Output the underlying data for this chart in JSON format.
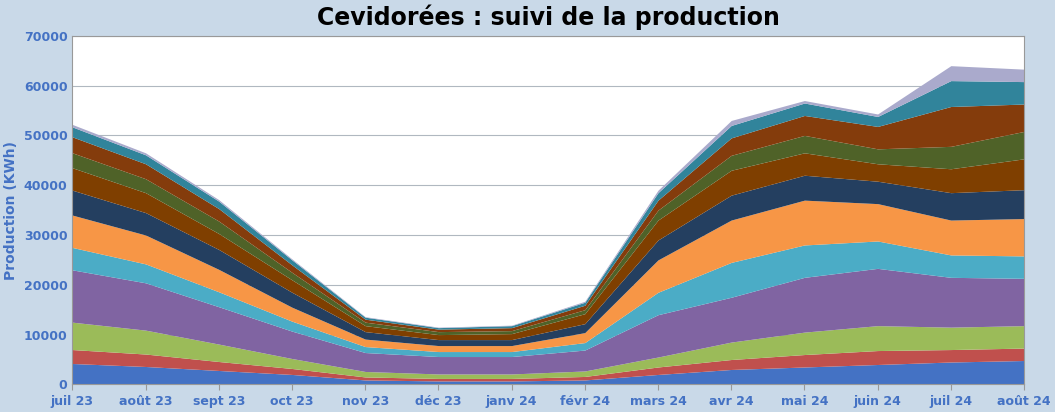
{
  "title": "Cevidorées : suivi de la production",
  "ylabel": "Production (KWh)",
  "xlabels": [
    "juil 23",
    "août 23",
    "sept 23",
    "oct 23",
    "nov 23",
    "déc 23",
    "janv 24",
    "févr 24",
    "mars 24",
    "avr 24",
    "mai 24",
    "juin 24",
    "juil 24",
    "août 24"
  ],
  "ylim": [
    0,
    70000
  ],
  "yticks": [
    0,
    10000,
    20000,
    30000,
    40000,
    50000,
    60000,
    70000
  ],
  "background_color": "#C9D9E8",
  "plot_bg": "#FFFFFF",
  "title_fontsize": 17,
  "axis_label_color": "#4472C4",
  "tick_color": "#4472C4",
  "series_colors": [
    "#4472C4",
    "#C0504D",
    "#9BBB59",
    "#8064A2",
    "#4BACC6",
    "#F79646",
    "#243F60",
    "#7F3F00",
    "#4F6228",
    "#843C0C",
    "#31849B",
    "#AAAACC"
  ],
  "series": [
    [
      4200,
      3600,
      2800,
      2000,
      900,
      700,
      700,
      900,
      2000,
      3000,
      3500,
      4000,
      4500,
      4800
    ],
    [
      2800,
      2500,
      1800,
      1200,
      600,
      500,
      500,
      700,
      1500,
      2000,
      2500,
      2800,
      2500,
      2500
    ],
    [
      5500,
      4800,
      3500,
      2000,
      1100,
      900,
      900,
      1100,
      2000,
      3500,
      4500,
      5000,
      4500,
      4500
    ],
    [
      10500,
      9500,
      7500,
      5500,
      3800,
      3500,
      3500,
      4200,
      8500,
      9000,
      11000,
      11500,
      10000,
      9500
    ],
    [
      4500,
      3800,
      3000,
      2000,
      1200,
      1000,
      1000,
      1500,
      4500,
      7000,
      6500,
      5500,
      4500,
      4500
    ],
    [
      6500,
      5800,
      4500,
      2800,
      1500,
      1200,
      1200,
      2000,
      6500,
      8500,
      9000,
      7500,
      7000,
      7500
    ],
    [
      5000,
      4500,
      4000,
      3000,
      1500,
      1200,
      1200,
      1800,
      4000,
      5000,
      5000,
      4500,
      5500,
      5800
    ],
    [
      4500,
      4000,
      3200,
      2500,
      1200,
      1000,
      1200,
      2000,
      4000,
      5000,
      4500,
      3500,
      4800,
      6200
    ],
    [
      3000,
      2800,
      2500,
      1500,
      700,
      600,
      600,
      800,
      2000,
      3000,
      3500,
      3000,
      4500,
      5500
    ],
    [
      3200,
      3000,
      2500,
      1500,
      600,
      500,
      600,
      900,
      2000,
      3500,
      4000,
      4500,
      8000,
      5500
    ],
    [
      2000,
      1800,
      1500,
      1000,
      400,
      300,
      400,
      600,
      1500,
      2500,
      2500,
      2000,
      5200,
      4500
    ],
    [
      500,
      400,
      300,
      200,
      100,
      100,
      100,
      200,
      500,
      1000,
      500,
      500,
      3000,
      2500
    ]
  ]
}
